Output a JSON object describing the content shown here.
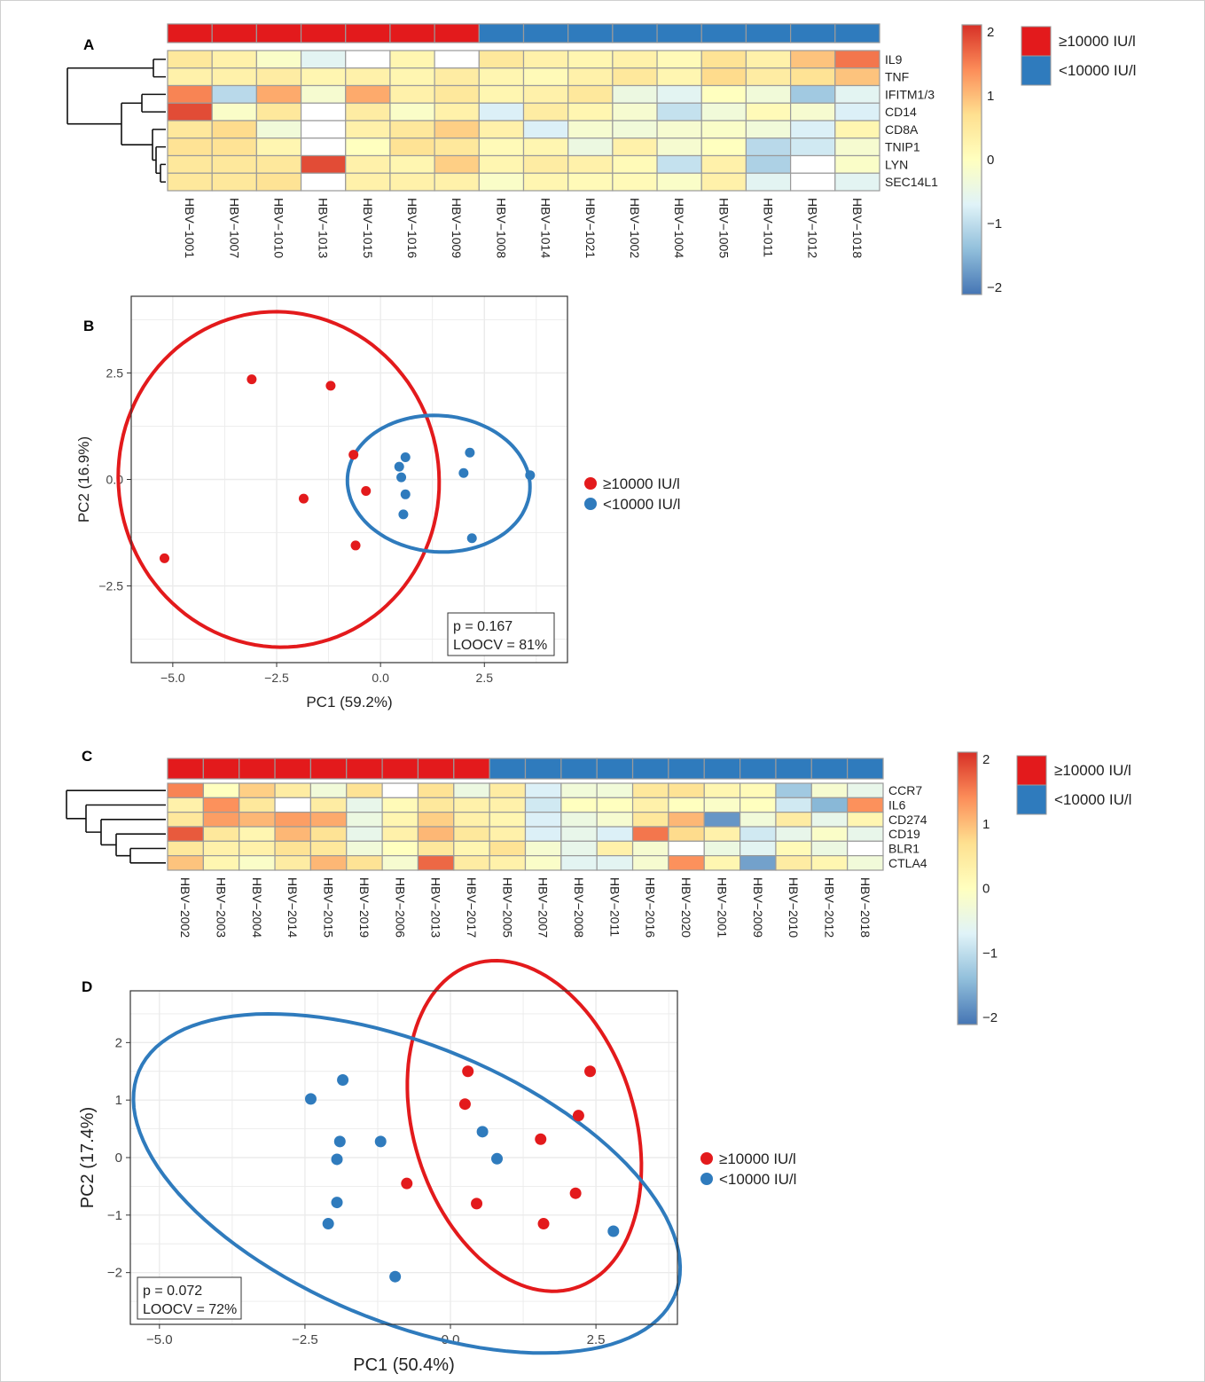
{
  "colors": {
    "high": "#e31a1c",
    "low": "#2f7bbd",
    "scale": [
      "#4575b4",
      "#91bfdb",
      "#e0f3f8",
      "#ffffbf",
      "#fee090",
      "#fc8d59",
      "#d73027"
    ]
  },
  "chart_data": [
    {
      "panel": "A",
      "type": "heatmap",
      "rows": [
        "IL9",
        "TNF",
        "IFITM1/3",
        "CD14",
        "CD8A",
        "TNIP1",
        "LYN",
        "SEC14L1"
      ],
      "columns": [
        "HBV−1001",
        "HBV−1007",
        "HBV−1010",
        "HBV−1013",
        "HBV−1015",
        "HBV−1016",
        "HBV−1009",
        "HBV−1008",
        "HBV−1014",
        "HBV−1021",
        "HBV−1002",
        "HBV−1004",
        "HBV−1005",
        "HBV−1011",
        "HBV−1012",
        "HBV−1018"
      ],
      "groups": [
        "high",
        "high",
        "high",
        "high",
        "high",
        "high",
        "high",
        "low",
        "low",
        "low",
        "low",
        "low",
        "low",
        "low",
        "low",
        "low"
      ],
      "values": [
        [
          0.5,
          0.3,
          -0.1,
          -0.6,
          null,
          0.2,
          null,
          0.5,
          0.3,
          0.2,
          0.3,
          0.1,
          0.6,
          0.3,
          0.9,
          1.5
        ],
        [
          0.3,
          0.3,
          0.4,
          0.2,
          0.3,
          0.2,
          0.4,
          0.2,
          0.1,
          0.3,
          0.5,
          0.2,
          0.7,
          0.4,
          0.6,
          0.9
        ],
        [
          1.4,
          -1.0,
          1.1,
          -0.2,
          1.1,
          0.3,
          0.5,
          0.2,
          0.3,
          0.5,
          -0.4,
          -0.6,
          0.0,
          -0.3,
          -1.2,
          -0.6
        ],
        [
          1.8,
          -0.1,
          0.5,
          null,
          0.4,
          -0.1,
          0.3,
          -0.7,
          0.4,
          0.2,
          -0.2,
          -0.9,
          -0.3,
          0.1,
          -0.2,
          -0.7
        ],
        [
          0.5,
          0.7,
          -0.3,
          null,
          0.3,
          0.5,
          0.8,
          0.3,
          -0.7,
          -0.2,
          -0.3,
          -0.2,
          -0.1,
          -0.3,
          -0.7,
          0.2
        ],
        [
          0.6,
          0.6,
          0.2,
          null,
          0.0,
          0.6,
          0.5,
          0.1,
          0.2,
          -0.4,
          0.3,
          -0.2,
          0.0,
          -1.0,
          -0.8,
          -0.2
        ],
        [
          0.5,
          0.5,
          0.5,
          1.8,
          0.3,
          0.2,
          0.8,
          0.2,
          0.4,
          0.3,
          0.1,
          -0.9,
          0.3,
          -1.1,
          null,
          -0.1
        ],
        [
          0.5,
          0.5,
          0.6,
          null,
          0.3,
          0.3,
          0.3,
          -0.1,
          0.2,
          0.1,
          0.1,
          -0.1,
          0.3,
          -0.6,
          null,
          -0.6
        ]
      ],
      "scale_range": [
        -2,
        2
      ],
      "scale_ticks": [
        "2",
        "1",
        "0",
        "−1",
        "−2"
      ],
      "legend": [
        "≥10000 IU/l",
        "<10000 IU/l"
      ]
    },
    {
      "panel": "B",
      "type": "scatter",
      "xlabel": "PC1 (59.2%)",
      "ylabel": "PC2 (16.9%)",
      "xlim": [
        -6.0,
        4.5
      ],
      "ylim": [
        -4.3,
        4.3
      ],
      "xticks": [
        -5.0,
        -2.5,
        0.0,
        2.5
      ],
      "xtick_labels": [
        "−5.0",
        "−2.5",
        "0.0",
        "2.5"
      ],
      "yticks": [
        -2.5,
        0.0,
        2.5
      ],
      "ytick_labels": [
        "−2.5",
        "0.0",
        "2.5"
      ],
      "series": [
        {
          "name": "≥10000 IU/l",
          "color": "#e31a1c",
          "points": [
            [
              -3.1,
              2.35
            ],
            [
              -1.2,
              2.2
            ],
            [
              -0.65,
              0.58
            ],
            [
              -0.35,
              -0.27
            ],
            [
              -1.85,
              -0.45
            ],
            [
              -0.6,
              -1.55
            ],
            [
              -5.2,
              -1.85
            ]
          ]
        },
        {
          "name": "<10000 IU/l",
          "color": "#2f7bbd",
          "points": [
            [
              0.45,
              0.3
            ],
            [
              0.6,
              0.52
            ],
            [
              0.5,
              0.05
            ],
            [
              0.6,
              -0.35
            ],
            [
              0.55,
              -0.82
            ],
            [
              2.15,
              0.63
            ],
            [
              2.0,
              0.15
            ],
            [
              3.6,
              0.1
            ],
            [
              2.2,
              -1.38
            ]
          ]
        }
      ],
      "ellipses": [
        {
          "series": "≥10000 IU/l",
          "cx": -2.45,
          "cy": 0.0,
          "rx": 3.85,
          "ry": 3.95,
          "angle": 21
        },
        {
          "series": "<10000 IU/l",
          "cx": 1.4,
          "cy": -0.1,
          "rx": 2.2,
          "ry": 1.6,
          "angle": -4
        }
      ],
      "annotation": [
        "p = 0.167",
        "LOOCV = 81%"
      ],
      "legend": [
        "≥10000 IU/l",
        "<10000 IU/l"
      ]
    },
    {
      "panel": "C",
      "type": "heatmap",
      "rows": [
        "CCR7",
        "IL6",
        "CD274",
        "CD19",
        "BLR1",
        "CTLA4"
      ],
      "columns": [
        "HBV−2002",
        "HBV−2003",
        "HBV−2004",
        "HBV−2014",
        "HBV−2015",
        "HBV−2019",
        "HBV−2006",
        "HBV−2013",
        "HBV−2017",
        "HBV−2005",
        "HBV−2007",
        "HBV−2008",
        "HBV−2011",
        "HBV−2016",
        "HBV−2020",
        "HBV−2001",
        "HBV−2009",
        "HBV−2010",
        "HBV−2012",
        "HBV−2018"
      ],
      "groups": [
        "high",
        "high",
        "high",
        "high",
        "high",
        "high",
        "high",
        "high",
        "high",
        "low",
        "low",
        "low",
        "low",
        "low",
        "low",
        "low",
        "low",
        "low",
        "low",
        "low"
      ],
      "values": [
        [
          1.4,
          0.0,
          0.8,
          0.4,
          -0.3,
          0.6,
          null,
          0.6,
          -0.4,
          0.4,
          -0.7,
          -0.3,
          -0.3,
          0.5,
          0.6,
          0.2,
          0.1,
          -1.2,
          -0.2,
          -0.5
        ],
        [
          0.3,
          1.3,
          0.5,
          null,
          0.4,
          -0.5,
          0.1,
          0.5,
          0.3,
          0.3,
          -0.8,
          0.0,
          0.0,
          0.3,
          0.0,
          -0.1,
          0.0,
          -0.8,
          -1.4,
          1.3
        ],
        [
          0.5,
          1.2,
          1.0,
          1.2,
          1.1,
          -0.4,
          0.2,
          0.8,
          0.3,
          0.2,
          -0.7,
          -0.4,
          -0.2,
          0.5,
          1.0,
          -1.7,
          -0.3,
          0.4,
          -0.5,
          0.2
        ],
        [
          1.7,
          0.5,
          0.2,
          1.0,
          0.6,
          -0.5,
          0.3,
          1.0,
          0.5,
          0.3,
          -0.7,
          -0.5,
          -0.7,
          1.5,
          0.7,
          0.3,
          -0.8,
          -0.5,
          -0.1,
          -0.5
        ],
        [
          0.5,
          0.3,
          0.3,
          0.6,
          0.5,
          -0.3,
          0.0,
          0.5,
          0.2,
          0.6,
          -0.2,
          -0.5,
          0.3,
          -0.2,
          null,
          -0.4,
          -0.6,
          0.1,
          -0.4,
          null
        ],
        [
          0.9,
          0.2,
          -0.1,
          0.4,
          1.0,
          0.6,
          -0.2,
          1.6,
          0.4,
          0.3,
          -0.1,
          -0.6,
          -0.6,
          -0.2,
          1.3,
          0.2,
          -1.6,
          0.4,
          0.2,
          -0.3
        ]
      ],
      "scale_range": [
        -2,
        2
      ],
      "scale_ticks": [
        "2",
        "1",
        "0",
        "−1",
        "−2"
      ],
      "legend": [
        "≥10000 IU/l",
        "<10000 IU/l"
      ]
    },
    {
      "panel": "D",
      "type": "scatter",
      "xlabel": "PC1 (50.4%)",
      "ylabel": "PC2 (17.4%)",
      "xlim": [
        -5.5,
        3.9
      ],
      "ylim": [
        -2.9,
        2.9
      ],
      "xticks": [
        -5.0,
        -2.5,
        0.0,
        2.5
      ],
      "xtick_labels": [
        "−5.0",
        "−2.5",
        "0.0",
        "2.5"
      ],
      "yticks": [
        -2,
        -1,
        0,
        1,
        2
      ],
      "ytick_labels": [
        "−2",
        "−1",
        "0",
        "1",
        "2"
      ],
      "series": [
        {
          "name": "≥10000 IU/l",
          "color": "#e31a1c",
          "points": [
            [
              0.3,
              1.5
            ],
            [
              2.4,
              1.5
            ],
            [
              0.25,
              0.93
            ],
            [
              2.2,
              0.73
            ],
            [
              1.55,
              0.32
            ],
            [
              -0.75,
              -0.45
            ],
            [
              2.15,
              -0.62
            ],
            [
              0.45,
              -0.8
            ],
            [
              1.6,
              -1.15
            ]
          ]
        },
        {
          "name": "<10000 IU/l",
          "color": "#2f7bbd",
          "points": [
            [
              -1.85,
              1.35
            ],
            [
              -2.4,
              1.02
            ],
            [
              -1.9,
              0.28
            ],
            [
              -1.2,
              0.28
            ],
            [
              0.55,
              0.45
            ],
            [
              0.8,
              -0.02
            ],
            [
              -1.95,
              -0.03
            ],
            [
              -1.95,
              -0.78
            ],
            [
              -2.1,
              -1.15
            ],
            [
              2.8,
              -1.28
            ],
            [
              -0.95,
              -2.07
            ]
          ]
        }
      ],
      "ellipses": [
        {
          "series": "≥10000 IU/l",
          "cx": 1.27,
          "cy": 0.55,
          "rx": 2.95,
          "ry": 1.9,
          "angle": -73
        },
        {
          "series": "<10000 IU/l",
          "cx": -0.75,
          "cy": -0.45,
          "rx": 5.0,
          "ry": 2.4,
          "angle": -23
        }
      ],
      "annotation": [
        "p = 0.072",
        "LOOCV = 72%"
      ],
      "legend": [
        "≥10000 IU/l",
        "<10000 IU/l"
      ]
    }
  ]
}
